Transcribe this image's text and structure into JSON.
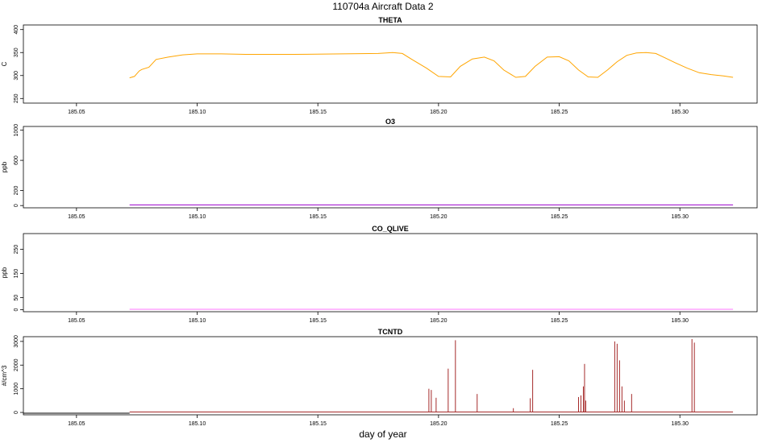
{
  "header": {
    "title": "110704a   Aircraft Data 2"
  },
  "xaxis": {
    "label": "day of year"
  },
  "colors": {
    "background": "#ffffff",
    "frame": "#000000"
  },
  "chart_data": [
    {
      "type": "line",
      "title": "THETA",
      "ylabel": "C",
      "color": "#FFA500",
      "xlim": [
        185.028,
        185.332
      ],
      "ylim": [
        240,
        410
      ],
      "xticks": [
        185.05,
        185.1,
        185.15,
        185.2,
        185.25,
        185.3
      ],
      "xtick_labels": [
        "185.05",
        "185.10",
        "185.15",
        "185.20",
        "185.25",
        "185.30"
      ],
      "yticks": [
        250,
        300,
        350,
        400
      ],
      "ytick_labels": [
        "250",
        "300",
        "350",
        "400"
      ],
      "series": [
        {
          "x": [
            185.072,
            185.074,
            185.076,
            185.077,
            185.08,
            185.083,
            185.088,
            185.094,
            185.1,
            185.11,
            185.12,
            185.14,
            185.16,
            185.175,
            185.181,
            185.185,
            185.189,
            185.195,
            185.2,
            185.205,
            185.209,
            185.214,
            185.219,
            185.223,
            185.227,
            185.232,
            185.236,
            185.24,
            185.245,
            185.25,
            185.254,
            185.258,
            185.262,
            185.266,
            185.27,
            185.274,
            185.278,
            185.282,
            185.286,
            185.29,
            185.294,
            185.298,
            185.303,
            185.308,
            185.313,
            185.318,
            185.322
          ],
          "y": [
            295,
            298,
            310,
            313,
            318,
            335,
            340,
            345,
            347,
            347,
            346,
            346,
            347,
            348,
            350,
            348,
            335,
            316,
            298,
            297,
            320,
            336,
            340,
            332,
            312,
            296,
            298,
            320,
            340,
            341,
            332,
            312,
            297,
            296,
            312,
            330,
            344,
            349,
            350,
            348,
            338,
            328,
            316,
            306,
            302,
            299,
            296
          ]
        }
      ]
    },
    {
      "type": "line",
      "title": "O3",
      "ylabel": "ppb",
      "color": "#9900CC",
      "xlim": [
        185.028,
        185.332
      ],
      "ylim": [
        -30,
        1050
      ],
      "xticks": [
        185.05,
        185.1,
        185.15,
        185.2,
        185.25,
        185.3
      ],
      "xtick_labels": [
        "185.05",
        "185.10",
        "185.15",
        "185.20",
        "185.25",
        "185.30"
      ],
      "yticks": [
        0,
        200,
        600,
        1000
      ],
      "ytick_labels": [
        "0",
        "200",
        "600",
        "1000"
      ],
      "series": [
        {
          "x": [
            185.072,
            185.322
          ],
          "y": [
            8,
            8
          ]
        }
      ]
    },
    {
      "type": "line",
      "title": "CO_QLIVE",
      "ylabel": "ppb",
      "color": "#FF77FF",
      "xlim": [
        185.028,
        185.332
      ],
      "ylim": [
        -8,
        315
      ],
      "xticks": [
        185.05,
        185.1,
        185.15,
        185.2,
        185.25,
        185.3
      ],
      "xtick_labels": [
        "185.05",
        "185.10",
        "185.15",
        "185.20",
        "185.25",
        "185.30"
      ],
      "yticks": [
        0,
        50,
        150,
        250
      ],
      "ytick_labels": [
        "0",
        "50",
        "150",
        "250"
      ],
      "series": [
        {
          "x": [
            185.072,
            185.322
          ],
          "y": [
            2,
            2
          ]
        }
      ]
    },
    {
      "type": "line",
      "title": "TCNTD",
      "ylabel": "#/cm^3",
      "color": "#A52A2A",
      "xlim": [
        185.028,
        185.332
      ],
      "ylim": [
        -100,
        3200
      ],
      "xticks": [
        185.05,
        185.1,
        185.15,
        185.2,
        185.25,
        185.3
      ],
      "xtick_labels": [
        "185.05",
        "185.10",
        "185.15",
        "185.20",
        "185.25",
        "185.30"
      ],
      "yticks": [
        0,
        1000,
        2000,
        3000
      ],
      "ytick_labels": [
        "0",
        "1000",
        "2000",
        "3000"
      ],
      "baseline_segments": [
        {
          "x": [
            185.028,
            185.072
          ],
          "y": [
            -30,
            -30
          ],
          "color": "#000000"
        },
        {
          "x": [
            185.072,
            185.322
          ],
          "y": [
            20,
            20
          ],
          "color": "#A52A2A"
        }
      ],
      "spikes": {
        "x": [
          185.196,
          185.197,
          185.199,
          185.204,
          185.207,
          185.216,
          185.231,
          185.238,
          185.239,
          185.258,
          185.259,
          185.26,
          185.2605,
          185.261,
          185.273,
          185.274,
          185.275,
          185.276,
          185.277,
          185.28,
          185.305,
          185.306
        ],
        "y": [
          1000,
          950,
          620,
          1850,
          3050,
          780,
          180,
          600,
          1800,
          650,
          720,
          1100,
          2050,
          500,
          3000,
          2900,
          2200,
          1100,
          500,
          780,
          3100,
          2950
        ]
      }
    }
  ]
}
